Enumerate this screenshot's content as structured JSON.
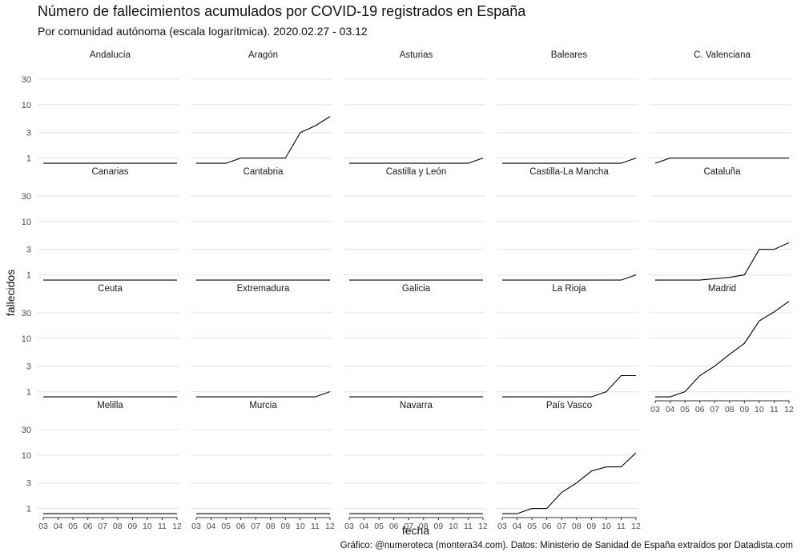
{
  "title": "Número de fallecimientos acumulados por COVID-19 registrados en España",
  "subtitle": "Por comunidad autónoma (escala logarítmica). 2020.02.27 - 03.12",
  "caption": "Gráfico: @numeroteca (montera34.com). Datos: Ministerio de Sanidad de España extraídos por Datadista.com",
  "colors": {
    "line": "#000000",
    "grid": "#e8e8e8",
    "text": "#4d4d4d"
  },
  "chart_data": {
    "type": "line",
    "layout": "small-multiples",
    "xlabel": "fecha",
    "ylabel": "fallecidos",
    "yscale": "log",
    "x": [
      "03",
      "04",
      "05",
      "06",
      "07",
      "08",
      "09",
      "10",
      "11",
      "12"
    ],
    "yticks": [
      1,
      3,
      10,
      30
    ],
    "yticklabels": [
      "1",
      "3",
      "10",
      "30"
    ],
    "ylim": [
      0.7,
      50
    ],
    "grid": true,
    "panels": [
      {
        "name": "Andalucía",
        "values": [
          0.8,
          0.8,
          0.8,
          0.8,
          0.8,
          0.8,
          0.8,
          0.8,
          0.8,
          0.8
        ]
      },
      {
        "name": "Aragón",
        "values": [
          0.8,
          0.8,
          0.8,
          1,
          1,
          1,
          1,
          3,
          4,
          6
        ]
      },
      {
        "name": "Asturias",
        "values": [
          0.8,
          0.8,
          0.8,
          0.8,
          0.8,
          0.8,
          0.8,
          0.8,
          0.8,
          1
        ]
      },
      {
        "name": "Baleares",
        "values": [
          0.8,
          0.8,
          0.8,
          0.8,
          0.8,
          0.8,
          0.8,
          0.8,
          0.8,
          1
        ]
      },
      {
        "name": "C. Valenciana",
        "values": [
          0.8,
          1,
          1,
          1,
          1,
          1,
          1,
          1,
          1,
          1
        ]
      },
      {
        "name": "Canarias",
        "values": [
          0.8,
          0.8,
          0.8,
          0.8,
          0.8,
          0.8,
          0.8,
          0.8,
          0.8,
          0.8
        ]
      },
      {
        "name": "Cantabria",
        "values": [
          0.8,
          0.8,
          0.8,
          0.8,
          0.8,
          0.8,
          0.8,
          0.8,
          0.8,
          0.8
        ]
      },
      {
        "name": "Castilla y León",
        "values": [
          0.8,
          0.8,
          0.8,
          0.8,
          0.8,
          0.8,
          0.8,
          0.8,
          0.8,
          0.8
        ]
      },
      {
        "name": "Castilla-La Mancha",
        "values": [
          0.8,
          0.8,
          0.8,
          0.8,
          0.8,
          0.8,
          0.8,
          0.8,
          0.8,
          1
        ]
      },
      {
        "name": "Cataluña",
        "values": [
          0.8,
          0.8,
          0.8,
          0.8,
          0.85,
          0.9,
          1,
          3,
          3,
          4
        ]
      },
      {
        "name": "Ceuta",
        "values": [
          0.8,
          0.8,
          0.8,
          0.8,
          0.8,
          0.8,
          0.8,
          0.8,
          0.8,
          0.8
        ]
      },
      {
        "name": "Extremadura",
        "values": [
          0.8,
          0.8,
          0.8,
          0.8,
          0.8,
          0.8,
          0.8,
          0.8,
          0.8,
          1
        ]
      },
      {
        "name": "Galicia",
        "values": [
          0.8,
          0.8,
          0.8,
          0.8,
          0.8,
          0.8,
          0.8,
          0.8,
          0.8,
          0.8
        ]
      },
      {
        "name": "La Rioja",
        "values": [
          0.8,
          0.8,
          0.8,
          0.8,
          0.8,
          0.8,
          0.8,
          1,
          2,
          2
        ]
      },
      {
        "name": "Madrid",
        "values": [
          0.8,
          0.8,
          1,
          2,
          3,
          5,
          8,
          21,
          31,
          49
        ]
      },
      {
        "name": "Melilla",
        "values": [
          0.8,
          0.8,
          0.8,
          0.8,
          0.8,
          0.8,
          0.8,
          0.8,
          0.8,
          0.8
        ]
      },
      {
        "name": "Murcia",
        "values": [
          0.8,
          0.8,
          0.8,
          0.8,
          0.8,
          0.8,
          0.8,
          0.8,
          0.8,
          0.8
        ]
      },
      {
        "name": "Navarra",
        "values": [
          0.8,
          0.8,
          0.8,
          0.8,
          0.8,
          0.8,
          0.8,
          0.8,
          0.8,
          0.8
        ]
      },
      {
        "name": "País Vasco",
        "values": [
          0.8,
          0.8,
          1,
          1,
          2,
          3,
          5,
          6,
          6,
          11
        ]
      }
    ]
  }
}
